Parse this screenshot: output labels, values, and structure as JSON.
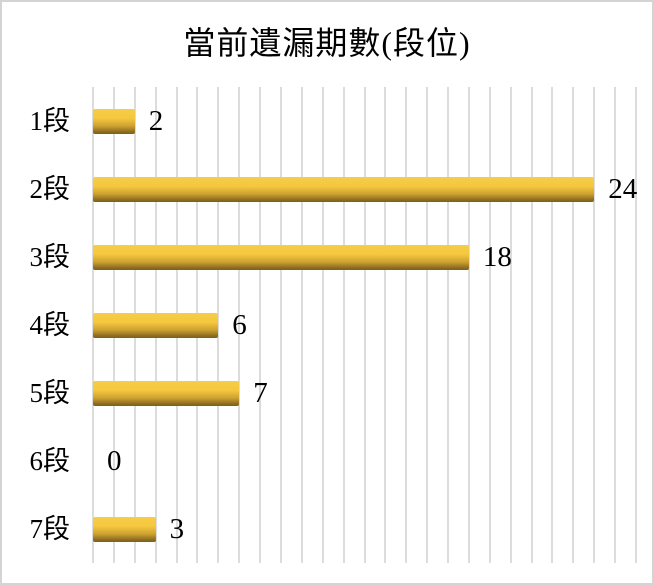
{
  "chart_data": {
    "type": "bar",
    "orientation": "horizontal",
    "title": "當前遺漏期數(段位)",
    "categories": [
      "1段",
      "2段",
      "3段",
      "4段",
      "5段",
      "6段",
      "7段"
    ],
    "values": [
      2,
      24,
      18,
      6,
      7,
      0,
      3
    ],
    "data_labels": [
      "2",
      "24",
      "18",
      "6",
      "7",
      "0",
      "3"
    ],
    "xlabel": "",
    "ylabel": "",
    "xlim": [
      0,
      26
    ],
    "gridline_interval": 1,
    "grid": true,
    "legend_position": "none",
    "colors": {
      "bar_top": "#f7cd47",
      "bar_bottom": "#7c5f16",
      "gridline": "#dcdcdc",
      "text": "#000000",
      "background": "#ffffff",
      "frame_border": "#d4d4d4"
    }
  }
}
